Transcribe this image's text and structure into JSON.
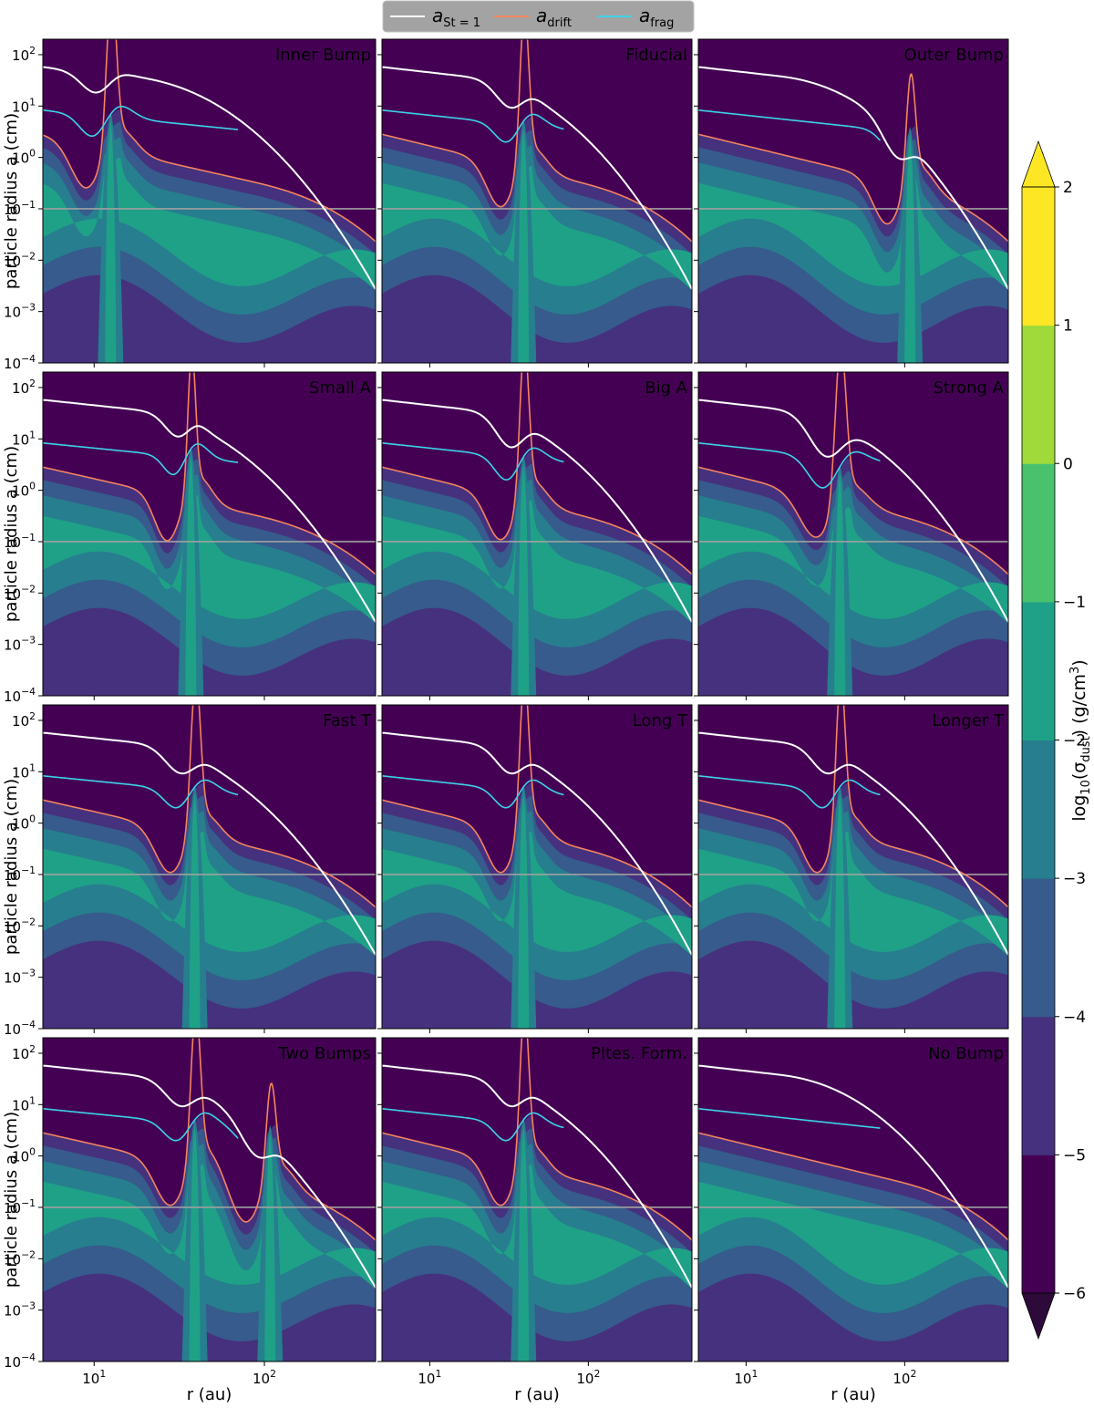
{
  "legend": {
    "entries": [
      {
        "name_main": "a",
        "name_sub": "St = 1",
        "color": "#ffffff"
      },
      {
        "name_main": "a",
        "name_sub": "drift",
        "color": "#f4845f"
      },
      {
        "name_main": "a",
        "name_sub": "frag",
        "color": "#3cd3e8"
      }
    ],
    "background": "#a3a3a3"
  },
  "colorbar": {
    "label_prefix": "log",
    "label_sub": "10",
    "label_mid": "(σ",
    "label_sigma_sub": "dust",
    "label_suffix": ") (g/cm",
    "label_sup": "3",
    "label_end": ")",
    "ticks": [
      "−6",
      "−5",
      "−4",
      "−3",
      "−2",
      "−1",
      "0",
      "1",
      "2"
    ],
    "levels": [
      -6,
      -5,
      -4,
      -3,
      -2,
      -1,
      0,
      1,
      2
    ],
    "colors": [
      "#440154",
      "#46317e",
      "#365b8c",
      "#277e8e",
      "#1fa188",
      "#4ac26d",
      "#9fda3a",
      "#fde725"
    ],
    "extend": "both"
  },
  "axes": {
    "xlabel": "r (au)",
    "ylabel": "particle radius a (cm)",
    "x_ticks": [
      {
        "v": 10,
        "b": "10",
        "e": "1"
      },
      {
        "v": 100,
        "b": "10",
        "e": "2"
      }
    ],
    "y_ticks": [
      {
        "v": 100,
        "b": "10",
        "e": "2"
      },
      {
        "v": 10,
        "b": "10",
        "e": "1"
      },
      {
        "v": 1,
        "b": "10",
        "e": "0"
      },
      {
        "v": 0.1,
        "b": "10",
        "e": "−1"
      },
      {
        "v": 0.01,
        "b": "10",
        "e": "−2"
      },
      {
        "v": 0.001,
        "b": "10",
        "e": "−3"
      },
      {
        "v": 0.0001,
        "b": "10",
        "e": "−4"
      }
    ]
  },
  "chart_data": {
    "type": "heatmap",
    "x_scale": "log",
    "y_scale": "log",
    "xlim": [
      5,
      450
    ],
    "ylim": [
      0.0001,
      200
    ],
    "reference_line_y": 0.1,
    "frag_end_r": 70,
    "panels": [
      {
        "title": "Inner Bump",
        "bumps": [
          {
            "r": 12.5,
            "w": 0.1,
            "depth": 0.42,
            "drift_peak": 300,
            "frag_drop": 0.55
          }
        ]
      },
      {
        "title": "Fiducial",
        "bumps": [
          {
            "r": 39,
            "w": 0.1,
            "depth": 0.42,
            "drift_peak": 250,
            "frag_drop": 0.5
          }
        ]
      },
      {
        "title": "Outer Bump",
        "bumps": [
          {
            "r": 108,
            "w": 0.1,
            "depth": 0.5,
            "drift_peak": 45,
            "frag_drop": 0.5
          }
        ]
      },
      {
        "title": "Small A",
        "bumps": [
          {
            "r": 37,
            "w": 0.08,
            "depth": 0.35,
            "drift_peak": 150,
            "frag_drop": 0.45
          }
        ]
      },
      {
        "title": "Big A",
        "bumps": [
          {
            "r": 39,
            "w": 0.1,
            "depth": 0.55,
            "drift_peak": 250,
            "frag_drop": 0.6
          }
        ]
      },
      {
        "title": "Strong A",
        "bumps": [
          {
            "r": 39,
            "w": 0.12,
            "depth": 0.75,
            "drift_peak": 300,
            "frag_drop": 0.8
          }
        ]
      },
      {
        "title": "Fast T",
        "bumps": [
          {
            "r": 39,
            "w": 0.1,
            "depth": 0.42,
            "drift_peak": 250,
            "frag_drop": 0.5
          }
        ]
      },
      {
        "title": "Long T",
        "bumps": [
          {
            "r": 39,
            "w": 0.1,
            "depth": 0.42,
            "drift_peak": 250,
            "frag_drop": 0.5
          }
        ]
      },
      {
        "title": "Longer T",
        "bumps": [
          {
            "r": 39,
            "w": 0.1,
            "depth": 0.42,
            "drift_peak": 250,
            "frag_drop": 0.5
          }
        ]
      },
      {
        "title": "Two Bumps",
        "bumps": [
          {
            "r": 39,
            "w": 0.1,
            "depth": 0.42,
            "drift_peak": 250,
            "frag_drop": 0.5
          },
          {
            "r": 108,
            "w": 0.1,
            "depth": 0.5,
            "drift_peak": 30,
            "frag_drop": 0.5
          }
        ]
      },
      {
        "title": "Pltes. Form.",
        "bumps": [
          {
            "r": 39,
            "w": 0.1,
            "depth": 0.42,
            "drift_peak": 250,
            "frag_drop": 0.5
          }
        ]
      },
      {
        "title": "No Bump",
        "bumps": []
      }
    ]
  }
}
